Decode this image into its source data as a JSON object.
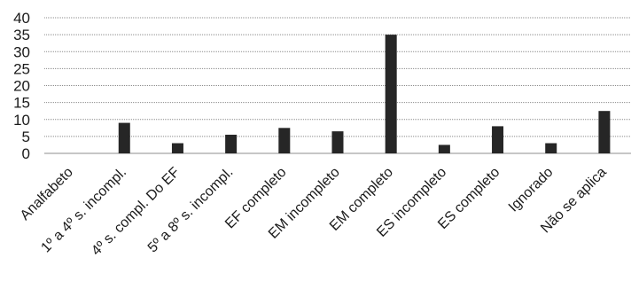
{
  "chart_data": {
    "type": "bar",
    "title": "",
    "xlabel": "",
    "ylabel": "",
    "ylim": [
      0,
      40
    ],
    "yticks": [
      0,
      5,
      10,
      15,
      20,
      25,
      30,
      35,
      40
    ],
    "grid": true,
    "legend": "none",
    "bar_color": "#262626",
    "grid_color": "#8c8c8c",
    "categories": [
      "Analfabeto",
      "1º a 4º s. incompl.",
      "4º s. compl. Do EF",
      "5º a 8º s. incompl.",
      "EF completo",
      "EM incompleto",
      "EM completo",
      "ES incompleto",
      "ES completo",
      "Ignorado",
      "Não se aplica"
    ],
    "values": [
      0,
      9,
      3,
      5.5,
      7.5,
      6.5,
      35,
      2.5,
      8,
      3,
      12.5
    ]
  }
}
